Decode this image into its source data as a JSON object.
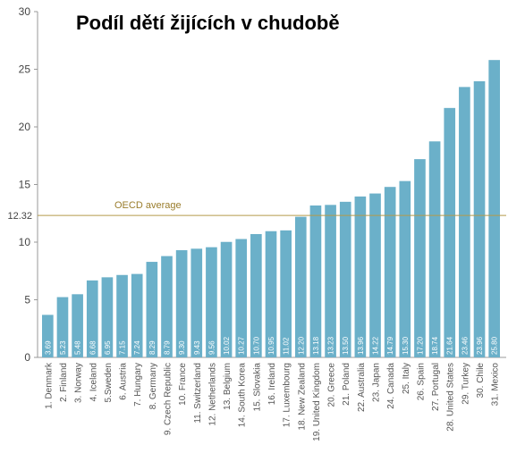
{
  "chart_data": {
    "type": "bar",
    "title": "Podíl dětí žijících v chudobě",
    "categories": [
      "1. Denmark",
      "2. Finland",
      "3. Norway",
      "4. Iceland",
      "5.Sweden",
      "6. Austria",
      "7. Hungary",
      "8. Germany",
      "9. Czech Republic",
      "10. France",
      "11. Switzerland",
      "12. Netherlands",
      "13. Belgium",
      "14. South Korea",
      "15. Slovakia",
      "16. Ireland",
      "17. Luxembourg",
      "18. New Zealand",
      "19. United Kingdom",
      "20. Greece",
      "21. Poland",
      "22. Australia",
      "23. Japan",
      "24. Canada",
      "25. Italy",
      "26. Spain",
      "27. Portugal",
      "28. United States",
      "29. Turkey",
      "30. Chile",
      "31. Mexico"
    ],
    "values": [
      3.69,
      5.23,
      5.48,
      6.68,
      6.95,
      7.15,
      7.24,
      8.29,
      8.79,
      9.3,
      9.43,
      9.56,
      10.02,
      10.27,
      10.7,
      10.95,
      11.02,
      12.2,
      13.18,
      13.23,
      13.5,
      13.96,
      14.22,
      14.79,
      15.3,
      17.2,
      18.74,
      21.64,
      23.46,
      23.96,
      25.8
    ],
    "value_labels": [
      "3.69",
      "5.23",
      "5.48",
      "6.68",
      "6.95",
      "7.15",
      "7.24",
      "8.29",
      "8.79",
      "9.30",
      "9.43",
      "9.56",
      "10.02",
      "10.27",
      "10.70",
      "10.95",
      "11.02",
      "12.20",
      "13.18",
      "13.23",
      "13.50",
      "13.96",
      "14.22",
      "14.79",
      "15.30",
      "17.20",
      "18.74",
      "21.64",
      "23.46",
      "23.96",
      "25.80"
    ],
    "ylim": [
      0,
      30
    ],
    "yticks": [
      "0",
      "5",
      "10",
      "15",
      "20",
      "25",
      "30"
    ],
    "reference_line": {
      "value": 12.32,
      "tick_label": "12.32",
      "label": "OECD average"
    },
    "colors": {
      "bar": "#6bb0c9",
      "average_line": "#b59a4a",
      "axis": "#999999"
    },
    "grid": false,
    "legend": "none"
  }
}
